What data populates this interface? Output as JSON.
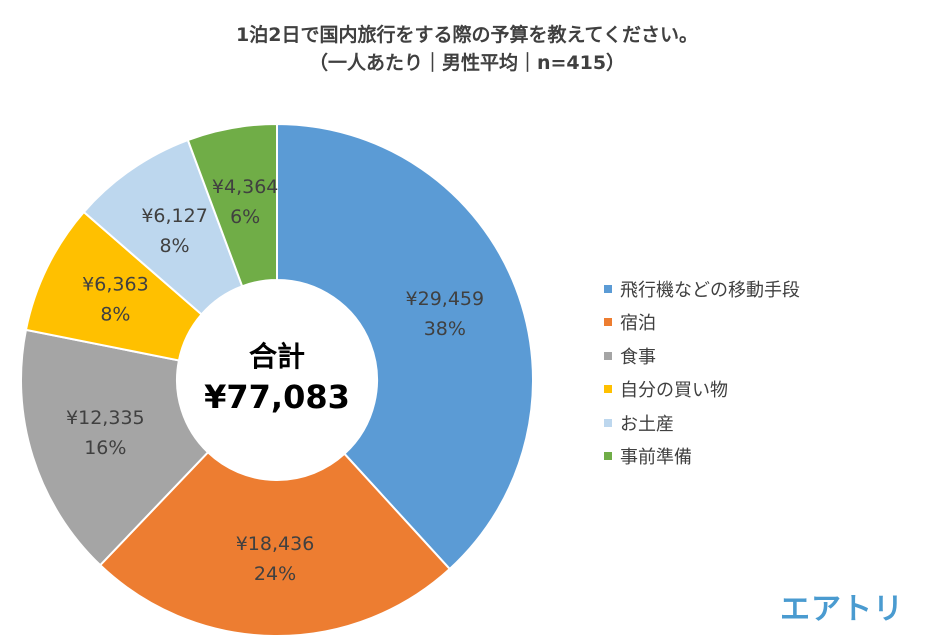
{
  "chart_data": {
    "type": "donut",
    "title": "1泊2日で国内旅行をする際の予算を教えてください。",
    "subtitle": "（一人あたり｜男性平均｜n=415）",
    "center_label": "合計",
    "center_value": "¥77,083",
    "legend_position": "right",
    "slices": [
      {
        "name": "飛行機などの移動手段",
        "value": 29459,
        "label": "¥29,459",
        "percent": "38%",
        "color": "#5B9BD5"
      },
      {
        "name": "宿泊",
        "value": 18436,
        "label": "¥18,436",
        "percent": "24%",
        "color": "#ED7D31"
      },
      {
        "name": "食事",
        "value": 12335,
        "label": "¥12,335",
        "percent": "16%",
        "color": "#A5A5A5"
      },
      {
        "name": "自分の買い物",
        "value": 6363,
        "label": "¥6,363",
        "percent": "8%",
        "color": "#FFC000"
      },
      {
        "name": "お土産",
        "value": 6127,
        "label": "¥6,127",
        "percent": "8%",
        "color": "#BDD7EE"
      },
      {
        "name": "事前準備",
        "value": 4364,
        "label": "¥4,364",
        "percent": "6%",
        "color": "#70AD47"
      }
    ]
  },
  "logo": "エアトリ"
}
